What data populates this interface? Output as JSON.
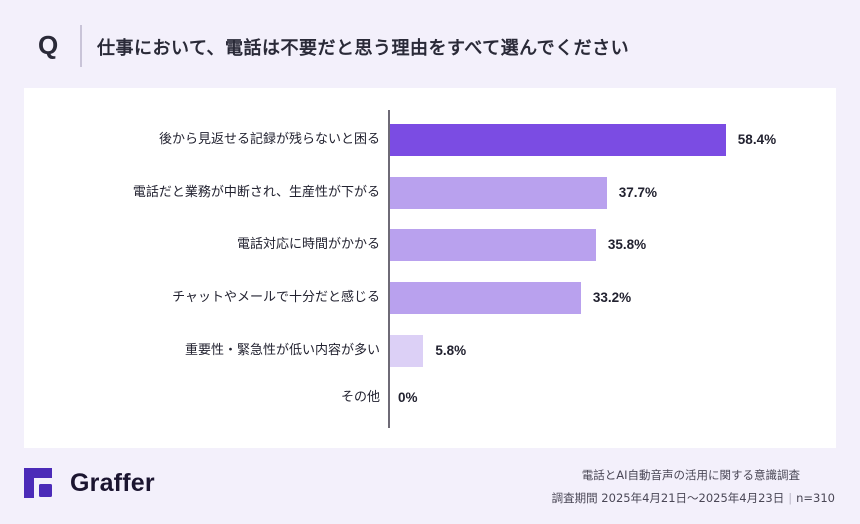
{
  "header": {
    "q_mark": "Q",
    "question": "仕事において、電話は不要だと思う理由をすべて選んでください"
  },
  "chart_data": {
    "type": "bar",
    "orientation": "horizontal",
    "title": "仕事において、電話は不要だと思う理由をすべて選んでください",
    "categories": [
      "後から見返せる記録が残らないと困る",
      "電話だと業務が中断され、生産性が下がる",
      "電話対応に時間がかかる",
      "チャットやメールで十分だと感じる",
      "重要性・緊急性が低い内容が多い",
      "その他"
    ],
    "values": [
      58.4,
      37.7,
      35.8,
      33.2,
      5.8,
      0
    ],
    "value_labels": [
      "58.4%",
      "37.7%",
      "35.8%",
      "33.2%",
      "5.8%",
      "0%"
    ],
    "bar_colors": [
      "#7b4ce3",
      "#b9a1ee",
      "#b9a1ee",
      "#b9a1ee",
      "#dcd0f6",
      "#dcd0f6"
    ],
    "xlabel": "",
    "ylabel": "",
    "unit": "%",
    "grid": false,
    "legend": null
  },
  "footer": {
    "brand": "Graffer",
    "brand_color": "#4b2bb8",
    "survey_title": "電話とAI自動音声の活用に関する意識調査",
    "survey_period": "調査期間 2025年4月21日〜2025年4月23日",
    "separator": "|",
    "sample_size": "n=310"
  }
}
